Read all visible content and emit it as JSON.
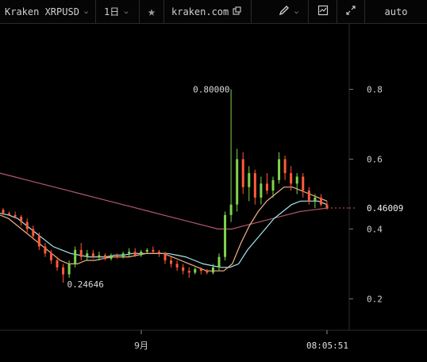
{
  "toolbar": {
    "symbol": "Kraken XRPUSD",
    "interval": "1日",
    "favorite_icon": "star-icon",
    "source": "kraken.com",
    "popout_icon": "external-window-icon",
    "draw_icon": "pencil-icon",
    "indicator_icon": "chart-indicator-icon",
    "fullscreen_icon": "expand-icon",
    "scale_mode": "auto"
  },
  "chart_data": {
    "type": "candlestick",
    "y_ticks": [
      "0.8",
      "0.6",
      "0.4",
      "0.2"
    ],
    "x_ticks": [
      "9月"
    ],
    "current_time": "08:05:51",
    "last_price": "0.46009",
    "high_label": "0.80000",
    "low_label": "0.24646",
    "ylim": [
      0.11,
      0.99
    ],
    "colors": {
      "up": "#7fd34e",
      "down": "#ff5a3c",
      "ma_fast": "#f4b183",
      "ma_mid": "#a8e6f0",
      "ma_slow": "#b05a6a",
      "last_price": "#e05050"
    },
    "candles": [
      [
        0.455,
        0.46,
        0.44,
        0.445
      ],
      [
        0.445,
        0.45,
        0.44,
        0.44
      ],
      [
        0.44,
        0.45,
        0.43,
        0.435
      ],
      [
        0.435,
        0.44,
        0.41,
        0.42
      ],
      [
        0.42,
        0.43,
        0.39,
        0.4
      ],
      [
        0.4,
        0.41,
        0.37,
        0.38
      ],
      [
        0.38,
        0.39,
        0.34,
        0.35
      ],
      [
        0.35,
        0.36,
        0.32,
        0.33
      ],
      [
        0.33,
        0.34,
        0.3,
        0.31
      ],
      [
        0.31,
        0.32,
        0.28,
        0.29
      ],
      [
        0.29,
        0.3,
        0.246,
        0.27
      ],
      [
        0.27,
        0.31,
        0.26,
        0.3
      ],
      [
        0.3,
        0.35,
        0.29,
        0.34
      ],
      [
        0.34,
        0.36,
        0.31,
        0.32
      ],
      [
        0.32,
        0.34,
        0.31,
        0.33
      ],
      [
        0.33,
        0.34,
        0.315,
        0.32
      ],
      [
        0.32,
        0.335,
        0.31,
        0.325
      ],
      [
        0.325,
        0.33,
        0.31,
        0.315
      ],
      [
        0.315,
        0.33,
        0.31,
        0.325
      ],
      [
        0.325,
        0.33,
        0.315,
        0.32
      ],
      [
        0.32,
        0.335,
        0.315,
        0.33
      ],
      [
        0.33,
        0.345,
        0.32,
        0.335
      ],
      [
        0.335,
        0.345,
        0.32,
        0.325
      ],
      [
        0.325,
        0.34,
        0.32,
        0.335
      ],
      [
        0.335,
        0.345,
        0.33,
        0.34
      ],
      [
        0.34,
        0.35,
        0.33,
        0.335
      ],
      [
        0.335,
        0.34,
        0.32,
        0.33
      ],
      [
        0.33,
        0.335,
        0.3,
        0.31
      ],
      [
        0.31,
        0.32,
        0.29,
        0.3
      ],
      [
        0.3,
        0.31,
        0.28,
        0.29
      ],
      [
        0.29,
        0.3,
        0.27,
        0.28
      ],
      [
        0.28,
        0.29,
        0.26,
        0.275
      ],
      [
        0.275,
        0.29,
        0.27,
        0.285
      ],
      [
        0.285,
        0.29,
        0.27,
        0.28
      ],
      [
        0.28,
        0.285,
        0.27,
        0.275
      ],
      [
        0.275,
        0.3,
        0.27,
        0.29
      ],
      [
        0.29,
        0.33,
        0.28,
        0.32
      ],
      [
        0.32,
        0.45,
        0.31,
        0.44
      ],
      [
        0.44,
        0.8,
        0.42,
        0.47
      ],
      [
        0.47,
        0.63,
        0.45,
        0.6
      ],
      [
        0.6,
        0.62,
        0.5,
        0.52
      ],
      [
        0.52,
        0.58,
        0.48,
        0.56
      ],
      [
        0.56,
        0.57,
        0.47,
        0.49
      ],
      [
        0.49,
        0.55,
        0.47,
        0.53
      ],
      [
        0.53,
        0.56,
        0.5,
        0.51
      ],
      [
        0.51,
        0.55,
        0.49,
        0.54
      ],
      [
        0.54,
        0.62,
        0.53,
        0.6
      ],
      [
        0.6,
        0.61,
        0.54,
        0.56
      ],
      [
        0.56,
        0.58,
        0.51,
        0.53
      ],
      [
        0.53,
        0.56,
        0.5,
        0.55
      ],
      [
        0.55,
        0.56,
        0.49,
        0.51
      ],
      [
        0.51,
        0.52,
        0.47,
        0.48
      ],
      [
        0.48,
        0.5,
        0.46,
        0.49
      ],
      [
        0.49,
        0.5,
        0.465,
        0.47
      ],
      [
        0.47,
        0.48,
        0.455,
        0.46
      ]
    ],
    "ma_fast": [
      0.44,
      0.43,
      0.41,
      0.39,
      0.37,
      0.35,
      0.33,
      0.31,
      0.3,
      0.3,
      0.31,
      0.31,
      0.315,
      0.32,
      0.32,
      0.32,
      0.325,
      0.33,
      0.33,
      0.33,
      0.32,
      0.31,
      0.3,
      0.29,
      0.28,
      0.28,
      0.28,
      0.3,
      0.36,
      0.41,
      0.45,
      0.48,
      0.5,
      0.52,
      0.52,
      0.51,
      0.5,
      0.49,
      0.48
    ],
    "ma_mid": [
      0.445,
      0.44,
      0.43,
      0.41,
      0.39,
      0.37,
      0.35,
      0.34,
      0.33,
      0.325,
      0.32,
      0.32,
      0.32,
      0.325,
      0.325,
      0.33,
      0.33,
      0.33,
      0.33,
      0.33,
      0.325,
      0.32,
      0.31,
      0.3,
      0.295,
      0.29,
      0.29,
      0.3,
      0.34,
      0.37,
      0.4,
      0.43,
      0.45,
      0.47,
      0.48,
      0.48,
      0.48,
      0.47
    ],
    "ma_slow": [
      0.56,
      0.55,
      0.54,
      0.53,
      0.52,
      0.51,
      0.5,
      0.49,
      0.48,
      0.47,
      0.46,
      0.45,
      0.44,
      0.43,
      0.42,
      0.41,
      0.4,
      0.4,
      0.41,
      0.42,
      0.43,
      0.44,
      0.45,
      0.455,
      0.46
    ]
  }
}
